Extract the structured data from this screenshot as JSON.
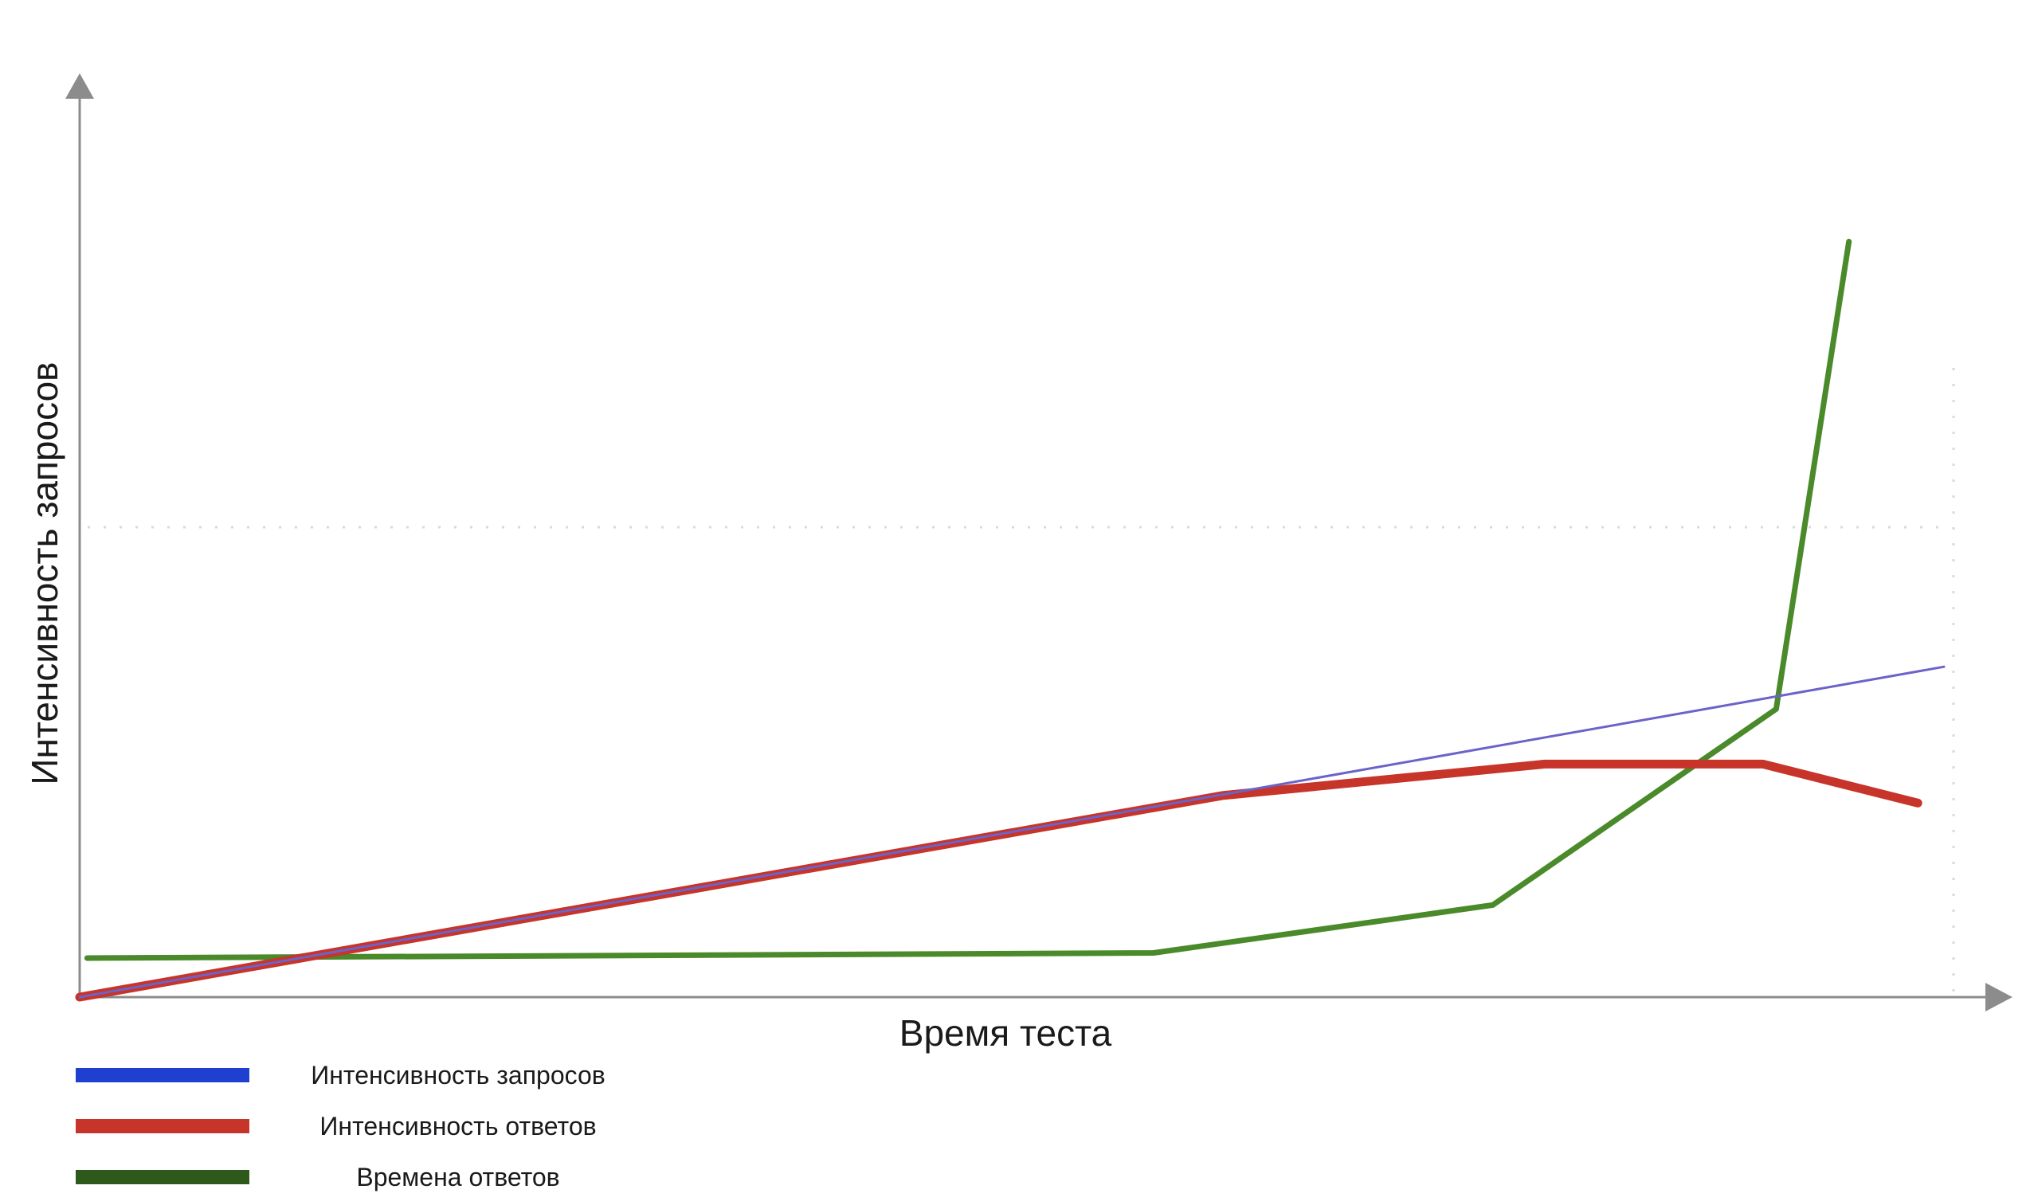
{
  "chart_data": {
    "type": "line",
    "title": "",
    "xlabel": "Время теста",
    "ylabel": "Интенсивность запросов",
    "xlim": [
      0,
      100
    ],
    "ylim": [
      0,
      100
    ],
    "grid": "partial-dotted",
    "legend": "bottom-left",
    "series": [
      {
        "name": "Интенсивность запросов",
        "legend_color": "#1f3fd1",
        "line_color": "#6b63c9",
        "width": "thin",
        "points": [
          [
            0,
            0
          ],
          [
            100,
            70.3
          ]
        ]
      },
      {
        "name": "Интенсивность ответов",
        "legend_color": "#c7342a",
        "line_color": "#c7342a",
        "width": "thick",
        "points": [
          [
            0,
            0
          ],
          [
            61.3,
            42.9
          ],
          [
            78.6,
            49.6
          ],
          [
            90.3,
            49.6
          ],
          [
            98.6,
            41.3
          ]
        ]
      },
      {
        "name": "Времена ответов",
        "legend_color": "#2d5a1b",
        "line_color": "#4a8a2a",
        "width": "medium",
        "points": [
          [
            0.4,
            8.3
          ],
          [
            57.6,
            9.4
          ],
          [
            75.8,
            19.6
          ],
          [
            91,
            61.3
          ],
          [
            94.9,
            160.8
          ]
        ]
      }
    ]
  }
}
